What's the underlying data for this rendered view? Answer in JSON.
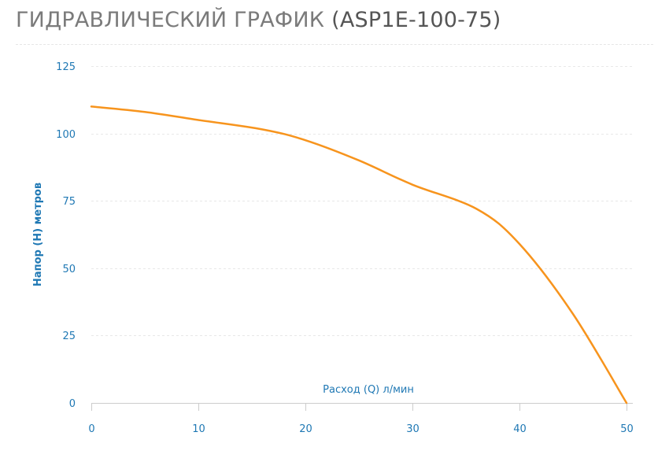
{
  "header": {
    "title_main": "ГИДРАВЛИЧЕСКИЙ ГРАФИК",
    "title_model": "(ASP1E-100-75)"
  },
  "colors": {
    "line": "#f7941d",
    "axis_text": "#1f78b4",
    "title_main": "#7b7b7b",
    "title_model": "#555555",
    "grid": "#e8e8e8"
  },
  "chart_data": {
    "type": "line",
    "title": "ГИДРАВЛИЧЕСКИЙ ГРАФИК (ASP1E-100-75)",
    "xlabel": "Расход (Q) л/мин",
    "ylabel": "Напор (H) метров",
    "xlim": [
      0,
      50
    ],
    "ylim": [
      0,
      125
    ],
    "xticks": [
      0,
      10,
      20,
      30,
      40,
      50
    ],
    "yticks": [
      0,
      25,
      50,
      75,
      100,
      125
    ],
    "grid": true,
    "series": [
      {
        "x": [
          0,
          5,
          10,
          16,
          20,
          25,
          30,
          36,
          40,
          45,
          50
        ],
        "y": [
          110,
          108,
          105,
          101.5,
          97.5,
          90,
          81,
          72,
          59,
          33,
          0
        ]
      }
    ]
  }
}
